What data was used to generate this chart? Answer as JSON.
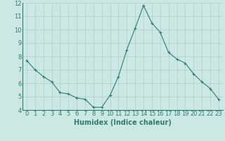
{
  "x": [
    0,
    1,
    2,
    3,
    4,
    5,
    6,
    7,
    8,
    9,
    10,
    11,
    12,
    13,
    14,
    15,
    16,
    17,
    18,
    19,
    20,
    21,
    22,
    23
  ],
  "y": [
    7.7,
    7.0,
    6.5,
    6.1,
    5.3,
    5.2,
    4.9,
    4.8,
    4.2,
    4.2,
    5.1,
    6.5,
    8.5,
    10.1,
    11.8,
    10.5,
    9.8,
    8.3,
    7.8,
    7.5,
    6.7,
    6.1,
    5.6,
    4.8
  ],
  "line_color": "#2e7d6e",
  "marker": "+",
  "bg_color": "#cce8e3",
  "grid_color": "#b0cdc9",
  "xlabel": "Humidex (Indice chaleur)",
  "ylim": [
    4,
    12
  ],
  "xlim_min": -0.5,
  "xlim_max": 23.5,
  "yticks": [
    4,
    5,
    6,
    7,
    8,
    9,
    10,
    11,
    12
  ],
  "xticks": [
    0,
    1,
    2,
    3,
    4,
    5,
    6,
    7,
    8,
    9,
    10,
    11,
    12,
    13,
    14,
    15,
    16,
    17,
    18,
    19,
    20,
    21,
    22,
    23
  ],
  "xlabel_fontsize": 7,
  "tick_fontsize": 6,
  "line_width": 0.8,
  "marker_size": 3
}
